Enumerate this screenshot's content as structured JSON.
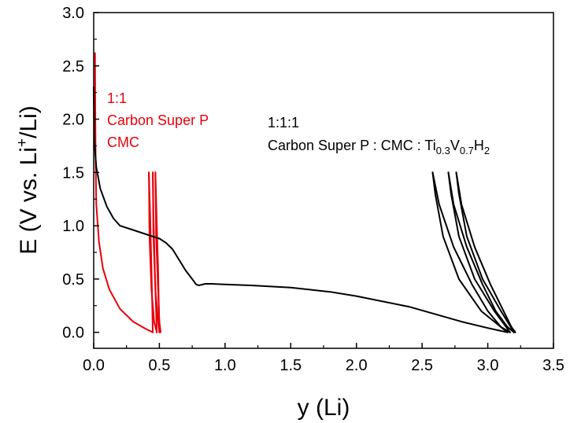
{
  "chart_data": {
    "type": "line",
    "xlabel": "y (Li)",
    "ylabel_parts": {
      "main": "E (V vs. Li",
      "sup": "+",
      "tail": "/Li)"
    },
    "xlim": [
      0.0,
      3.5
    ],
    "ylim": [
      -0.15,
      3.0
    ],
    "x_ticks": [
      "0.0",
      "0.5",
      "1.0",
      "1.5",
      "2.0",
      "2.5",
      "3.0",
      "3.5"
    ],
    "y_ticks": [
      "0.0",
      "0.5",
      "1.0",
      "1.5",
      "2.0",
      "2.5",
      "3.0"
    ],
    "grid": false,
    "annotations": {
      "red": {
        "line1": "1:1",
        "line2": "Carbon Super P",
        "line3": "CMC"
      },
      "black": {
        "line1": "1:1:1",
        "line2_text": "Carbon Super P : CMC : Ti",
        "sub1": "0.3",
        "v": "V",
        "sub2": "0.7",
        "h": "H",
        "sub3": "2"
      }
    },
    "series": [
      {
        "color": "#e8000b",
        "segments": [
          [
            [
              0.01,
              2.62
            ],
            [
              0.012,
              2.1
            ],
            [
              0.015,
              1.6
            ],
            [
              0.02,
              1.2
            ],
            [
              0.04,
              0.85
            ],
            [
              0.07,
              0.6
            ],
            [
              0.12,
              0.4
            ],
            [
              0.2,
              0.22
            ],
            [
              0.3,
              0.1
            ],
            [
              0.4,
              0.03
            ],
            [
              0.45,
              0.0
            ]
          ],
          [
            [
              0.45,
              0.0
            ],
            [
              0.44,
              0.6
            ],
            [
              0.43,
              1.1
            ],
            [
              0.42,
              1.5
            ]
          ],
          [
            [
              0.42,
              1.5
            ],
            [
              0.425,
              0.9
            ],
            [
              0.44,
              0.4
            ],
            [
              0.46,
              0.1
            ],
            [
              0.48,
              0.0
            ]
          ],
          [
            [
              0.48,
              0.0
            ],
            [
              0.465,
              0.6
            ],
            [
              0.455,
              1.1
            ],
            [
              0.45,
              1.5
            ]
          ],
          [
            [
              0.45,
              1.5
            ],
            [
              0.455,
              0.9
            ],
            [
              0.47,
              0.4
            ],
            [
              0.49,
              0.1
            ],
            [
              0.5,
              0.0
            ]
          ],
          [
            [
              0.5,
              0.0
            ],
            [
              0.49,
              0.6
            ],
            [
              0.478,
              1.1
            ],
            [
              0.47,
              1.5
            ]
          ],
          [
            [
              0.47,
              1.5
            ],
            [
              0.475,
              0.9
            ],
            [
              0.49,
              0.4
            ],
            [
              0.5,
              0.1
            ],
            [
              0.51,
              0.0
            ]
          ]
        ]
      },
      {
        "color": "#000000",
        "segments": [
          [
            [
              0.0,
              2.3
            ],
            [
              0.005,
              1.8
            ],
            [
              0.02,
              1.55
            ],
            [
              0.05,
              1.35
            ],
            [
              0.1,
              1.18
            ],
            [
              0.15,
              1.07
            ],
            [
              0.2,
              1.0
            ],
            [
              0.3,
              0.96
            ],
            [
              0.4,
              0.92
            ],
            [
              0.5,
              0.88
            ],
            [
              0.55,
              0.84
            ],
            [
              0.6,
              0.78
            ],
            [
              0.65,
              0.68
            ],
            [
              0.7,
              0.58
            ],
            [
              0.75,
              0.5
            ],
            [
              0.78,
              0.45
            ],
            [
              0.8,
              0.44
            ],
            [
              0.85,
              0.455
            ],
            [
              0.9,
              0.455
            ],
            [
              1.0,
              0.45
            ],
            [
              1.2,
              0.44
            ],
            [
              1.5,
              0.42
            ],
            [
              1.8,
              0.38
            ],
            [
              2.0,
              0.34
            ],
            [
              2.2,
              0.29
            ],
            [
              2.4,
              0.24
            ],
            [
              2.6,
              0.17
            ],
            [
              2.8,
              0.1
            ],
            [
              3.0,
              0.04
            ],
            [
              3.15,
              0.0
            ]
          ],
          [
            [
              3.15,
              0.0
            ],
            [
              2.95,
              0.2
            ],
            [
              2.78,
              0.5
            ],
            [
              2.66,
              0.9
            ],
            [
              2.6,
              1.3
            ],
            [
              2.58,
              1.5
            ]
          ],
          [
            [
              2.58,
              1.5
            ],
            [
              2.63,
              1.2
            ],
            [
              2.74,
              0.8
            ],
            [
              2.88,
              0.45
            ],
            [
              3.0,
              0.2
            ],
            [
              3.1,
              0.05
            ],
            [
              3.17,
              0.0
            ]
          ],
          [
            [
              3.17,
              0.0
            ],
            [
              3.05,
              0.2
            ],
            [
              2.9,
              0.5
            ],
            [
              2.78,
              0.9
            ],
            [
              2.72,
              1.3
            ],
            [
              2.7,
              1.5
            ]
          ],
          [
            [
              2.7,
              1.5
            ],
            [
              2.74,
              1.2
            ],
            [
              2.84,
              0.8
            ],
            [
              2.96,
              0.45
            ],
            [
              3.06,
              0.2
            ],
            [
              3.15,
              0.05
            ],
            [
              3.2,
              0.0
            ]
          ],
          [
            [
              3.2,
              0.0
            ],
            [
              3.1,
              0.2
            ],
            [
              2.96,
              0.5
            ],
            [
              2.84,
              0.9
            ],
            [
              2.78,
              1.3
            ],
            [
              2.76,
              1.5
            ]
          ],
          [
            [
              2.76,
              1.5
            ],
            [
              2.8,
              1.2
            ],
            [
              2.9,
              0.8
            ],
            [
              3.02,
              0.45
            ],
            [
              3.12,
              0.2
            ],
            [
              3.18,
              0.05
            ],
            [
              3.21,
              0.0
            ]
          ]
        ]
      }
    ]
  }
}
